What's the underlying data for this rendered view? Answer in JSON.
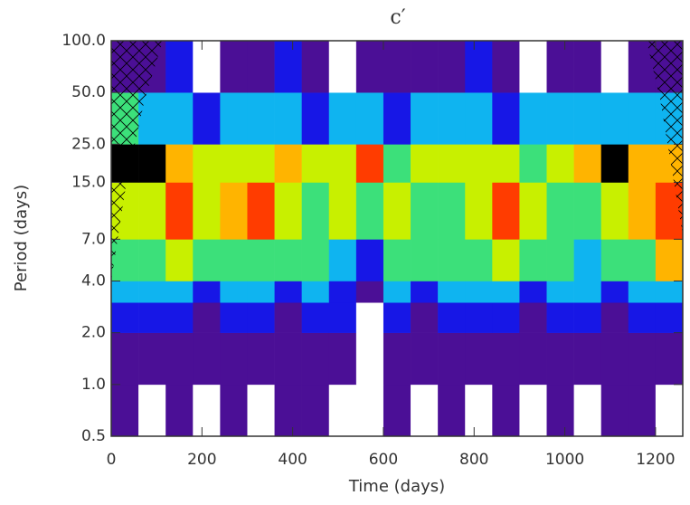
{
  "chart_data": {
    "type": "heatmap",
    "title": "c′",
    "xlabel": "Time (days)",
    "ylabel": "Period (days)",
    "xlim": [
      0,
      1260
    ],
    "ylim": [
      0.5,
      100
    ],
    "ylog": true,
    "xticks": [
      0,
      200,
      400,
      600,
      800,
      1000,
      1200
    ],
    "yticks": [
      {
        "value": 0.5,
        "label": "0.5"
      },
      {
        "value": 1,
        "label": "1.0"
      },
      {
        "value": 2,
        "label": "2.0"
      },
      {
        "value": 4,
        "label": "4.0"
      },
      {
        "value": 7,
        "label": "7.0"
      },
      {
        "value": 15,
        "label": "15.0"
      },
      {
        "value": 25,
        "label": "25.0"
      },
      {
        "value": 50,
        "label": "50.0"
      },
      {
        "value": 100,
        "label": "100.0"
      }
    ],
    "x": [
      0,
      60,
      120,
      180,
      240,
      300,
      360,
      420,
      480,
      540,
      600,
      660,
      720,
      780,
      840,
      900,
      960,
      1020,
      1080,
      1140,
      1200,
      1260
    ],
    "y": [
      0.5,
      1,
      2,
      3,
      4,
      7,
      15,
      25,
      50,
      100
    ],
    "colors": [
      "#ffffff",
      "#4b0f96",
      "#1717e6",
      "#0fb4f0",
      "#3ce07a",
      "#c8f000",
      "#ffb400",
      "#ff3c00",
      "#000000"
    ],
    "z": [
      [
        1,
        0,
        1,
        0,
        1,
        0,
        1,
        1,
        0,
        0,
        1,
        0,
        1,
        0,
        1,
        0,
        1,
        0,
        1,
        1,
        0
      ],
      [
        1,
        1,
        1,
        1,
        1,
        1,
        1,
        1,
        1,
        0,
        1,
        1,
        1,
        1,
        1,
        1,
        1,
        1,
        1,
        1,
        1
      ],
      [
        2,
        2,
        2,
        1,
        2,
        2,
        1,
        2,
        2,
        0,
        2,
        1,
        2,
        2,
        2,
        1,
        2,
        2,
        1,
        2,
        2
      ],
      [
        3,
        3,
        3,
        2,
        3,
        3,
        2,
        3,
        2,
        1,
        3,
        2,
        3,
        3,
        3,
        2,
        3,
        3,
        2,
        3,
        3
      ],
      [
        4,
        4,
        5,
        4,
        4,
        4,
        4,
        4,
        3,
        2,
        4,
        4,
        4,
        4,
        5,
        4,
        4,
        3,
        4,
        4,
        6
      ],
      [
        5,
        5,
        7,
        5,
        6,
        7,
        5,
        4,
        5,
        4,
        5,
        4,
        4,
        5,
        7,
        5,
        4,
        4,
        5,
        6,
        7
      ],
      [
        8,
        8,
        6,
        5,
        5,
        5,
        6,
        5,
        5,
        7,
        4,
        5,
        5,
        5,
        5,
        4,
        5,
        6,
        8,
        6,
        6
      ],
      [
        4,
        3,
        3,
        2,
        3,
        3,
        3,
        2,
        3,
        3,
        2,
        3,
        3,
        3,
        2,
        3,
        3,
        3,
        3,
        3,
        3
      ],
      [
        1,
        1,
        2,
        0,
        1,
        1,
        2,
        1,
        0,
        1,
        1,
        1,
        1,
        2,
        1,
        0,
        1,
        1,
        0,
        1,
        1
      ]
    ]
  }
}
